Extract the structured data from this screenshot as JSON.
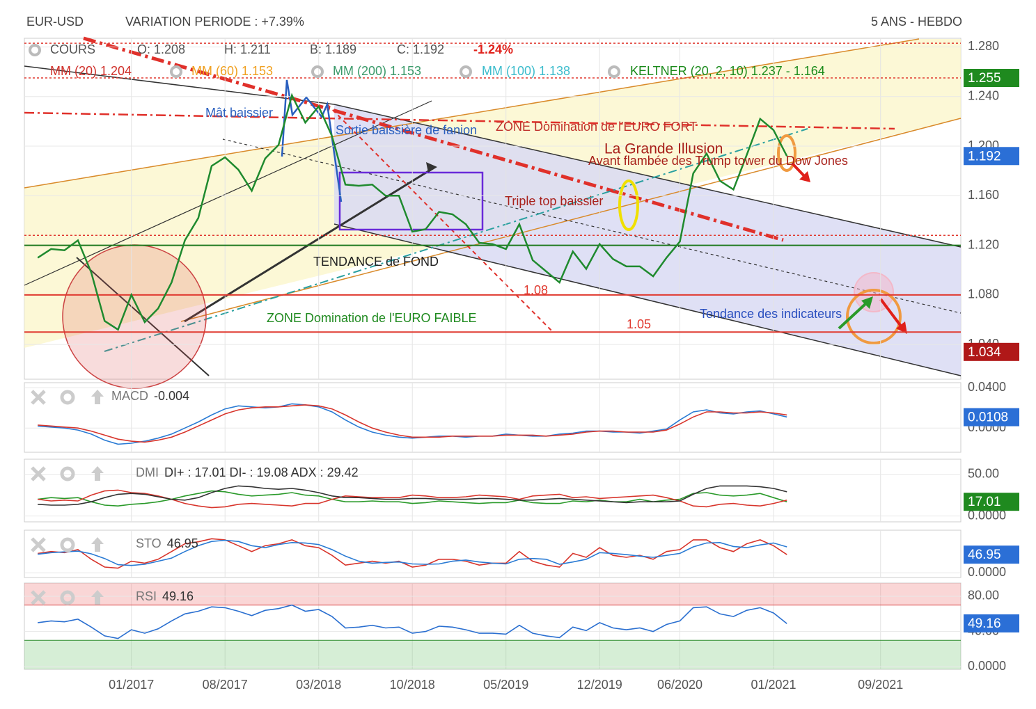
{
  "header": {
    "symbol": "EUR-USD",
    "variation": "VARIATION PERIODE : +7.39%",
    "period": "5 ANS - HEBDO"
  },
  "chart_data": [
    {
      "type": "line",
      "x": [
        "06/2016",
        "07/2016",
        "08/2016",
        "09/2016",
        "10/2016",
        "11/2016",
        "12/2016",
        "01/2017",
        "02/2017",
        "03/2017",
        "04/2017",
        "05/2017",
        "06/2017",
        "07/2017",
        "08/2017",
        "09/2017",
        "10/2017",
        "11/2017",
        "12/2017",
        "01/2018",
        "02/2018",
        "03/2018",
        "04/2018",
        "05/2018",
        "06/2018",
        "07/2018",
        "08/2018",
        "09/2018",
        "10/2018",
        "11/2018",
        "12/2018",
        "01/2019",
        "02/2019",
        "03/2019",
        "04/2019",
        "05/2019",
        "06/2019",
        "07/2019",
        "08/2019",
        "09/2019",
        "10/2019",
        "11/2019",
        "12/2019",
        "01/2020",
        "02/2020",
        "03/2020",
        "04/2020",
        "05/2020",
        "06/2020",
        "07/2020",
        "08/2020",
        "09/2020",
        "10/2020",
        "11/2020",
        "12/2020",
        "01/2021",
        "02/2021"
      ],
      "xlim": [
        "05/2016",
        "03/2022"
      ],
      "xticks": [
        "01/2017",
        "08/2017",
        "03/2018",
        "10/2018",
        "05/2019",
        "12/2019",
        "06/2020",
        "01/2021",
        "09/2021"
      ],
      "ylim": [
        1.012,
        1.287
      ],
      "yticks": [
        {
          "value": 1.28,
          "label": "1.280"
        },
        {
          "value": 1.24,
          "label": "1.240"
        },
        {
          "value": 1.2,
          "label": "1.200"
        },
        {
          "value": 1.16,
          "label": "1.160"
        },
        {
          "value": 1.12,
          "label": "1.120"
        },
        {
          "value": 1.08,
          "label": "1.080"
        },
        {
          "value": 1.04,
          "label": "1.040"
        }
      ],
      "series": [
        {
          "color": "#1f8a2e",
          "values": [
            1.11,
            1.117,
            1.116,
            1.124,
            1.098,
            1.059,
            1.052,
            1.08,
            1.058,
            1.069,
            1.09,
            1.124,
            1.142,
            1.184,
            1.191,
            1.181,
            1.164,
            1.19,
            1.201,
            1.241,
            1.219,
            1.232,
            1.208,
            1.169,
            1.168,
            1.169,
            1.16,
            1.16,
            1.131,
            1.133,
            1.147,
            1.145,
            1.137,
            1.122,
            1.121,
            1.117,
            1.137,
            1.108,
            1.099,
            1.09,
            1.115,
            1.101,
            1.121,
            1.109,
            1.103,
            1.103,
            1.095,
            1.11,
            1.123,
            1.178,
            1.194,
            1.172,
            1.165,
            1.193,
            1.222,
            1.213,
            1.192
          ]
        }
      ],
      "levels": [
        {
          "value": 1.283,
          "color": "#e03a30",
          "style": "dotted"
        },
        {
          "value": 1.255,
          "color": "#e03a30",
          "style": "dotted"
        },
        {
          "value": 1.128,
          "color": "#e03a30",
          "style": "dotted"
        },
        {
          "value": 1.12,
          "color": "#1f7a1f",
          "style": "solid"
        },
        {
          "value": 1.08,
          "color": "#e03a30",
          "style": "solid"
        },
        {
          "value": 1.05,
          "color": "#e03a30",
          "style": "solid"
        }
      ],
      "badges": [
        {
          "value": 1.255,
          "color": "#1f8a1f"
        },
        {
          "value": 1.192,
          "color": "#2b6fd6"
        },
        {
          "value": 1.034,
          "color": "#b01818"
        }
      ],
      "legend": [
        {
          "text": "COURS",
          "color": "#555"
        },
        {
          "text": "O: 1.208",
          "color": "#555"
        },
        {
          "text": "H: 1.211",
          "color": "#555"
        },
        {
          "text": "B: 1.189",
          "color": "#555"
        },
        {
          "text": "C: 1.192",
          "color": "#555"
        },
        {
          "text": "-1.24%",
          "color": "#e0201a"
        },
        {
          "text": "MM (20) 1.204",
          "color": "#d0302a"
        },
        {
          "text": "MM (60) 1.153",
          "color": "#f0a020"
        },
        {
          "text": "MM (200) 1.153",
          "color": "#3a9a6a"
        },
        {
          "text": "MM (100) 1.138",
          "color": "#3cbccc"
        },
        {
          "text": "KELTNER (20, 2, 10) 1.237 - 1.164",
          "color": "#1a8a1a"
        }
      ],
      "annotations": [
        {
          "text": "Mât baissier",
          "color": "#2a5fbf"
        },
        {
          "text": "Sortie baissière de fanion",
          "color": "#2a5fbf"
        },
        {
          "text": "ZONE Domination de l'EURO FORT",
          "color": "#c0302a"
        },
        {
          "text": "La Grande Illusion",
          "color": "#a8201a"
        },
        {
          "text": "Avant flambée des Trump tower du Dow Jones",
          "color": "#a8201a"
        },
        {
          "text": "Triple top baissier",
          "color": "#a8201a"
        },
        {
          "text": "TENDANCE de FOND",
          "color": "#222"
        },
        {
          "text": "ZONE Domination de l'EURO FAIBLE",
          "color": "#1f8a1f"
        },
        {
          "text": "1.08",
          "color": "#e03a30"
        },
        {
          "text": "1.05",
          "color": "#e03a30"
        },
        {
          "text": "Tendance des indicateurs",
          "color": "#2a4fbf"
        }
      ]
    },
    {
      "type": "line",
      "label": "MACD",
      "readout": "-0.004",
      "ylim": [
        -0.024,
        0.045
      ],
      "yticks": [
        {
          "value": 0.04,
          "label": "0.0400"
        },
        {
          "value": 0,
          "label": "0.0000"
        }
      ],
      "badges": [
        {
          "value": 0.0108,
          "color": "#2b6fd6"
        }
      ],
      "series": [
        {
          "color": "#2a7bd4",
          "values": [
            0.002,
            0.001,
            0.0,
            -0.002,
            -0.006,
            -0.012,
            -0.016,
            -0.015,
            -0.013,
            -0.01,
            -0.006,
            0.0,
            0.006,
            0.013,
            0.019,
            0.022,
            0.021,
            0.02,
            0.021,
            0.024,
            0.023,
            0.021,
            0.016,
            0.008,
            0.001,
            -0.004,
            -0.007,
            -0.009,
            -0.01,
            -0.009,
            -0.008,
            -0.008,
            -0.009,
            -0.008,
            -0.008,
            -0.006,
            -0.007,
            -0.008,
            -0.008,
            -0.006,
            -0.005,
            -0.003,
            -0.003,
            -0.004,
            -0.004,
            -0.005,
            -0.003,
            -0.001,
            0.008,
            0.016,
            0.018,
            0.015,
            0.014,
            0.016,
            0.017,
            0.014,
            0.011
          ]
        },
        {
          "color": "#d8352c",
          "values": [
            0.003,
            0.002,
            0.001,
            0.0,
            -0.003,
            -0.007,
            -0.011,
            -0.013,
            -0.014,
            -0.012,
            -0.009,
            -0.004,
            0.002,
            0.008,
            0.014,
            0.018,
            0.02,
            0.021,
            0.021,
            0.022,
            0.023,
            0.022,
            0.019,
            0.013,
            0.006,
            0.0,
            -0.004,
            -0.007,
            -0.009,
            -0.009,
            -0.009,
            -0.008,
            -0.008,
            -0.008,
            -0.008,
            -0.007,
            -0.007,
            -0.007,
            -0.008,
            -0.007,
            -0.006,
            -0.004,
            -0.003,
            -0.003,
            -0.004,
            -0.004,
            -0.004,
            -0.002,
            0.004,
            0.011,
            0.016,
            0.016,
            0.015,
            0.015,
            0.016,
            0.015,
            0.013
          ]
        }
      ]
    },
    {
      "type": "line",
      "label": "DMI",
      "readout": "DI+ : 17.01 DI- : 19.08 ADX : 29.42",
      "ylim": [
        -7,
        68
      ],
      "yticks": [
        {
          "value": 50,
          "label": "50.00"
        },
        {
          "value": 0,
          "label": "0.0000"
        }
      ],
      "badges": [
        {
          "value": 17.01,
          "color": "#1f8a1f"
        }
      ],
      "series": [
        {
          "color": "#2a9a2a",
          "values": [
            20,
            22,
            21,
            22,
            17,
            13,
            12,
            14,
            15,
            17,
            20,
            24,
            27,
            30,
            29,
            26,
            24,
            25,
            26,
            28,
            25,
            24,
            20,
            17,
            17,
            18,
            17,
            17,
            15,
            16,
            18,
            17,
            16,
            15,
            16,
            16,
            19,
            16,
            15,
            15,
            18,
            17,
            19,
            17,
            17,
            20,
            17,
            19,
            20,
            27,
            28,
            25,
            24,
            25,
            27,
            22,
            17
          ]
        },
        {
          "color": "#d8352c",
          "values": [
            20,
            18,
            19,
            18,
            25,
            30,
            31,
            28,
            27,
            24,
            20,
            15,
            12,
            10,
            11,
            14,
            15,
            14,
            13,
            12,
            15,
            15,
            20,
            24,
            23,
            22,
            22,
            22,
            25,
            24,
            22,
            22,
            23,
            25,
            24,
            23,
            20,
            24,
            25,
            26,
            22,
            23,
            21,
            22,
            23,
            24,
            25,
            22,
            18,
            12,
            11,
            14,
            15,
            13,
            12,
            15,
            19
          ]
        },
        {
          "color": "#333333",
          "values": [
            14,
            13,
            13,
            14,
            17,
            22,
            26,
            27,
            26,
            23,
            20,
            19,
            22,
            28,
            33,
            36,
            35,
            33,
            32,
            33,
            31,
            28,
            24,
            22,
            22,
            21,
            20,
            20,
            21,
            21,
            20,
            20,
            20,
            21,
            21,
            20,
            19,
            19,
            20,
            21,
            20,
            19,
            18,
            17,
            16,
            17,
            17,
            17,
            18,
            26,
            33,
            36,
            36,
            36,
            35,
            33,
            29
          ]
        }
      ]
    },
    {
      "type": "line",
      "label": "STO",
      "readout": "46.95",
      "ylim": [
        -12,
        110
      ],
      "yticks": [
        {
          "value": 0,
          "label": "0.0000"
        }
      ],
      "badges": [
        {
          "value": 46.95,
          "color": "#2b6fd6"
        }
      ],
      "series": [
        {
          "color": "#d8352c",
          "values": [
            50,
            55,
            52,
            60,
            35,
            15,
            12,
            30,
            25,
            35,
            55,
            75,
            80,
            88,
            85,
            70,
            55,
            70,
            75,
            85,
            70,
            65,
            45,
            20,
            25,
            30,
            25,
            30,
            15,
            20,
            35,
            35,
            30,
            20,
            25,
            25,
            55,
            30,
            20,
            15,
            50,
            40,
            65,
            45,
            40,
            45,
            35,
            55,
            60,
            85,
            85,
            65,
            55,
            75,
            85,
            70,
            47
          ]
        },
        {
          "color": "#2a7bd4",
          "values": [
            48,
            52,
            54,
            56,
            49,
            37,
            21,
            19,
            22,
            30,
            38,
            55,
            70,
            81,
            84,
            81,
            70,
            65,
            73,
            78,
            77,
            73,
            60,
            43,
            30,
            25,
            27,
            28,
            23,
            22,
            23,
            30,
            33,
            28,
            25,
            23,
            35,
            37,
            35,
            22,
            28,
            35,
            52,
            50,
            47,
            43,
            40,
            45,
            50,
            67,
            77,
            78,
            68,
            65,
            72,
            77,
            67
          ]
        }
      ]
    },
    {
      "type": "line",
      "label": "RSI",
      "readout": "49.16",
      "ylim": [
        -3,
        95
      ],
      "yticks": [
        {
          "value": 80,
          "label": "80.00"
        },
        {
          "value": 40,
          "label": "40.00"
        },
        {
          "value": 0,
          "label": "0.0000"
        }
      ],
      "overbought": 70,
      "oversold": 30,
      "badges": [
        {
          "value": 49.16,
          "color": "#2b6fd6"
        }
      ],
      "series": [
        {
          "color": "#2a6fd0",
          "values": [
            50,
            52,
            51,
            54,
            45,
            35,
            32,
            42,
            38,
            43,
            52,
            60,
            63,
            68,
            67,
            63,
            58,
            64,
            66,
            70,
            63,
            65,
            57,
            44,
            45,
            47,
            44,
            45,
            38,
            40,
            46,
            45,
            42,
            38,
            38,
            37,
            47,
            38,
            35,
            33,
            45,
            41,
            50,
            44,
            42,
            44,
            40,
            48,
            52,
            67,
            68,
            60,
            57,
            64,
            67,
            61,
            49
          ]
        }
      ]
    }
  ]
}
